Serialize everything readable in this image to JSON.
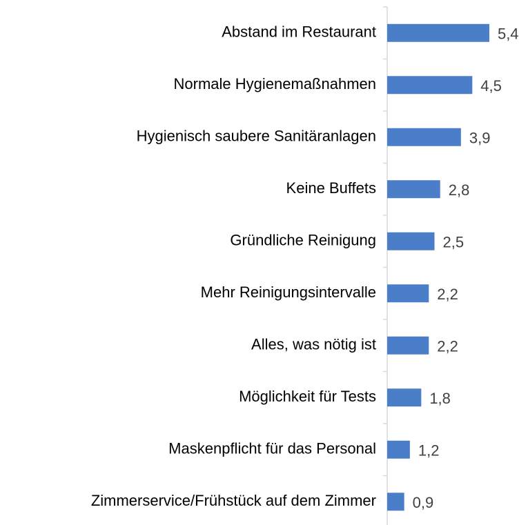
{
  "chart_data": {
    "type": "bar",
    "orientation": "horizontal",
    "categories": [
      "Abstand im Restaurant",
      "Normale Hygienemaßnahmen",
      "Hygienisch saubere Sanitäranlagen",
      "Keine Buffets",
      "Gründliche Reinigung",
      "Mehr Reinigungsintervalle",
      "Alles, was nötig ist",
      "Möglichkeit für Tests",
      "Maskenpflicht für das Personal",
      "Zimmerservice/Frühstück auf dem Zimmer"
    ],
    "values": [
      5.4,
      4.5,
      3.9,
      2.8,
      2.5,
      2.2,
      2.2,
      1.8,
      1.2,
      0.9
    ],
    "value_labels": [
      "5,4",
      "4,5",
      "3,9",
      "2,8",
      "2,5",
      "2,2",
      "2,2",
      "1,8",
      "1,2",
      "0,9"
    ],
    "color": "#4a7ec8"
  }
}
